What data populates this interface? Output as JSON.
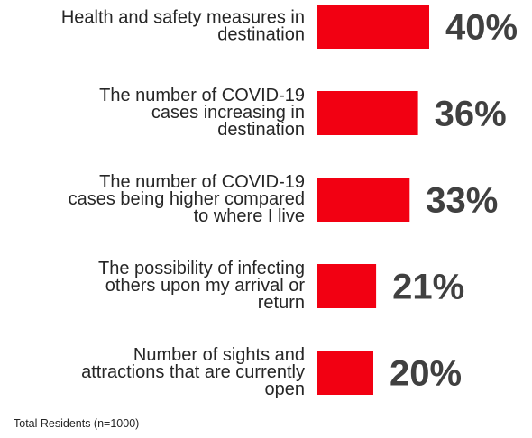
{
  "chart_data": {
    "type": "bar",
    "orientation": "horizontal",
    "categories": [
      [
        "Health and safety measures in",
        "destination"
      ],
      [
        "The number of COVID-19",
        "cases increasing in",
        "destination"
      ],
      [
        "The number of COVID-19",
        "cases being higher compared",
        "to where I live"
      ],
      [
        "The possibility of infecting",
        "others upon my arrival or",
        "return"
      ],
      [
        "Number of sights and",
        "attractions that are currently",
        "open"
      ]
    ],
    "values": [
      40,
      36,
      33,
      21,
      20
    ],
    "value_labels": [
      "40%",
      "36%",
      "33%",
      "21%",
      "20%"
    ],
    "bar_color": "#f20012",
    "grid": false,
    "legend": "none"
  },
  "footnote": "Total Residents (n=1000)"
}
